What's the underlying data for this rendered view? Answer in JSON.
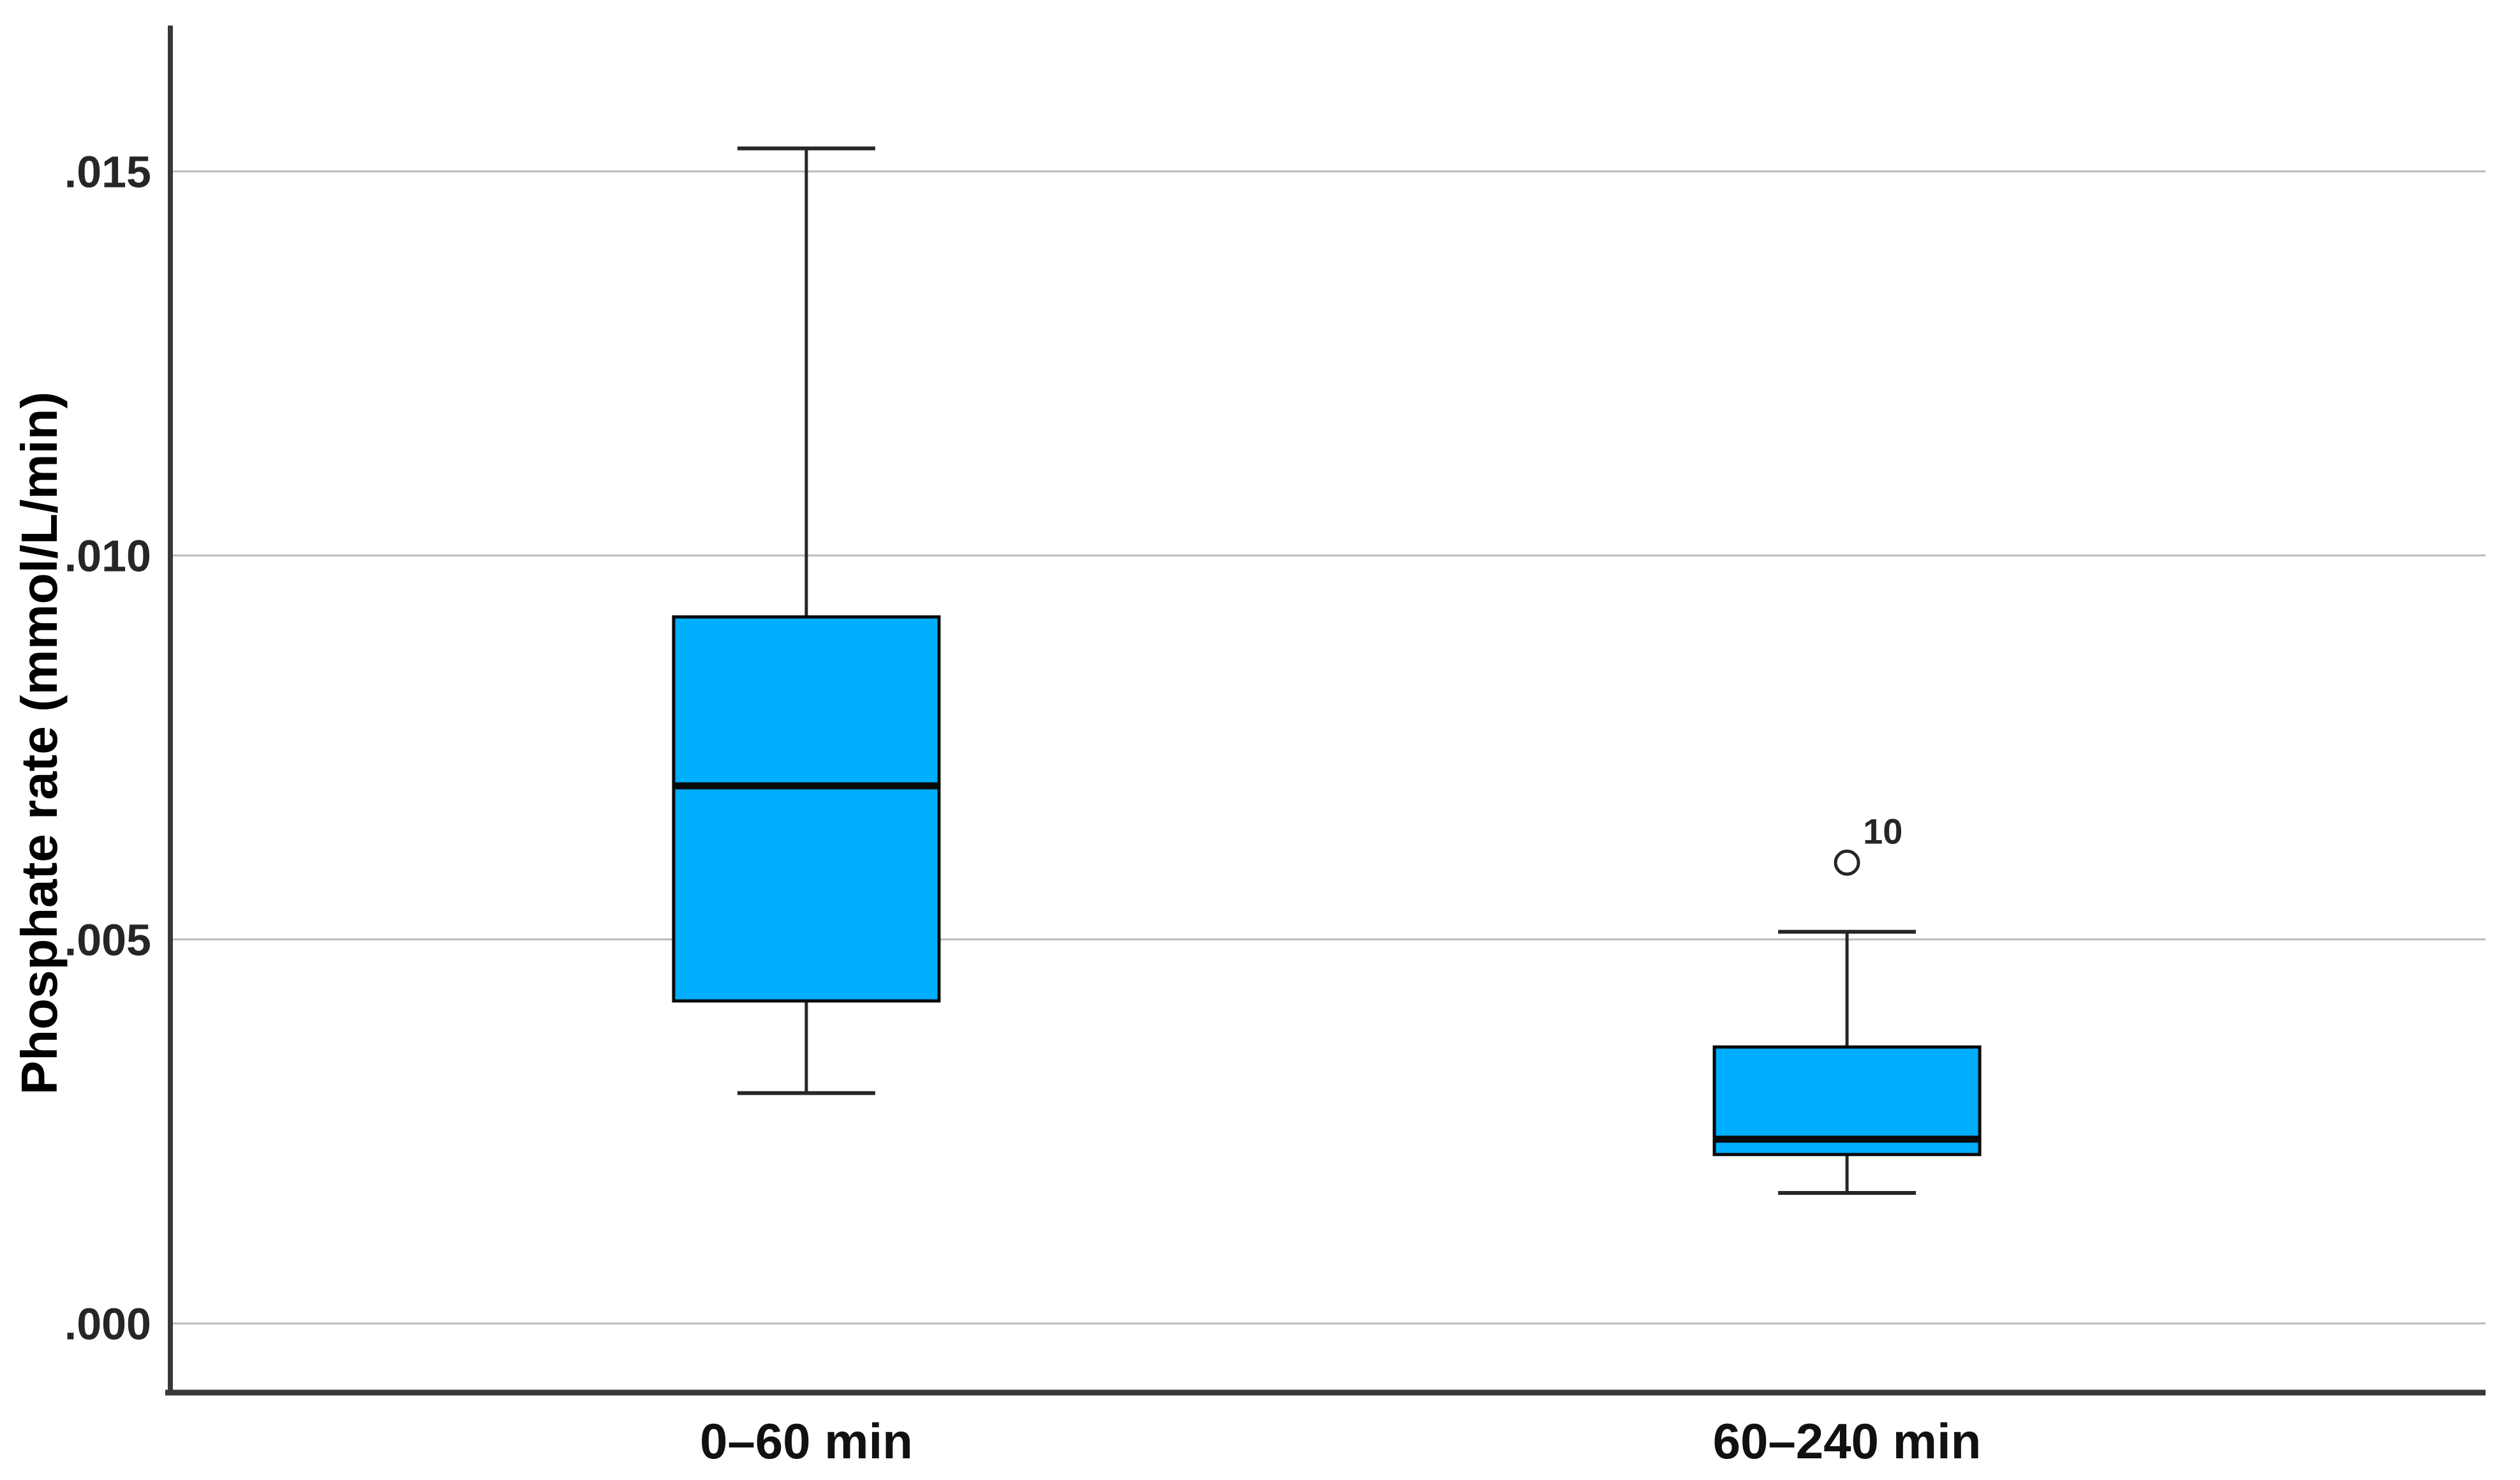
{
  "chart_data": {
    "type": "boxplot",
    "title": "",
    "xlabel": "",
    "ylabel": "Phosphate rate (mmol/L/min)",
    "categories": [
      "0–60 min",
      "60–240 min"
    ],
    "y_ticks": [
      {
        "label": ".000",
        "value": 0.0
      },
      {
        "label": ".005",
        "value": 0.005
      },
      {
        "label": ".010",
        "value": 0.01
      },
      {
        "label": ".015",
        "value": 0.015
      }
    ],
    "ylim": [
      -0.0009,
      0.0169
    ],
    "grid": "horizontal",
    "legend": "none",
    "series": [
      {
        "whisker_low": 0.003,
        "q1": 0.0042,
        "median": 0.007,
        "q3": 0.0092,
        "whisker_high": 0.0153,
        "outliers": []
      },
      {
        "whisker_low": 0.0017,
        "q1": 0.0022,
        "median": 0.0024,
        "q3": 0.0036,
        "whisker_high": 0.0051,
        "outliers": [
          {
            "value": 0.006,
            "label": "10"
          }
        ]
      }
    ],
    "colors": {
      "box_fill": "#00aeff",
      "box_stroke": "#0a0a0a",
      "whisker": "#262626",
      "grid": "#bbbbbb",
      "axis": "#383838",
      "tick_text": "#262626",
      "category_text": "#111111"
    }
  }
}
